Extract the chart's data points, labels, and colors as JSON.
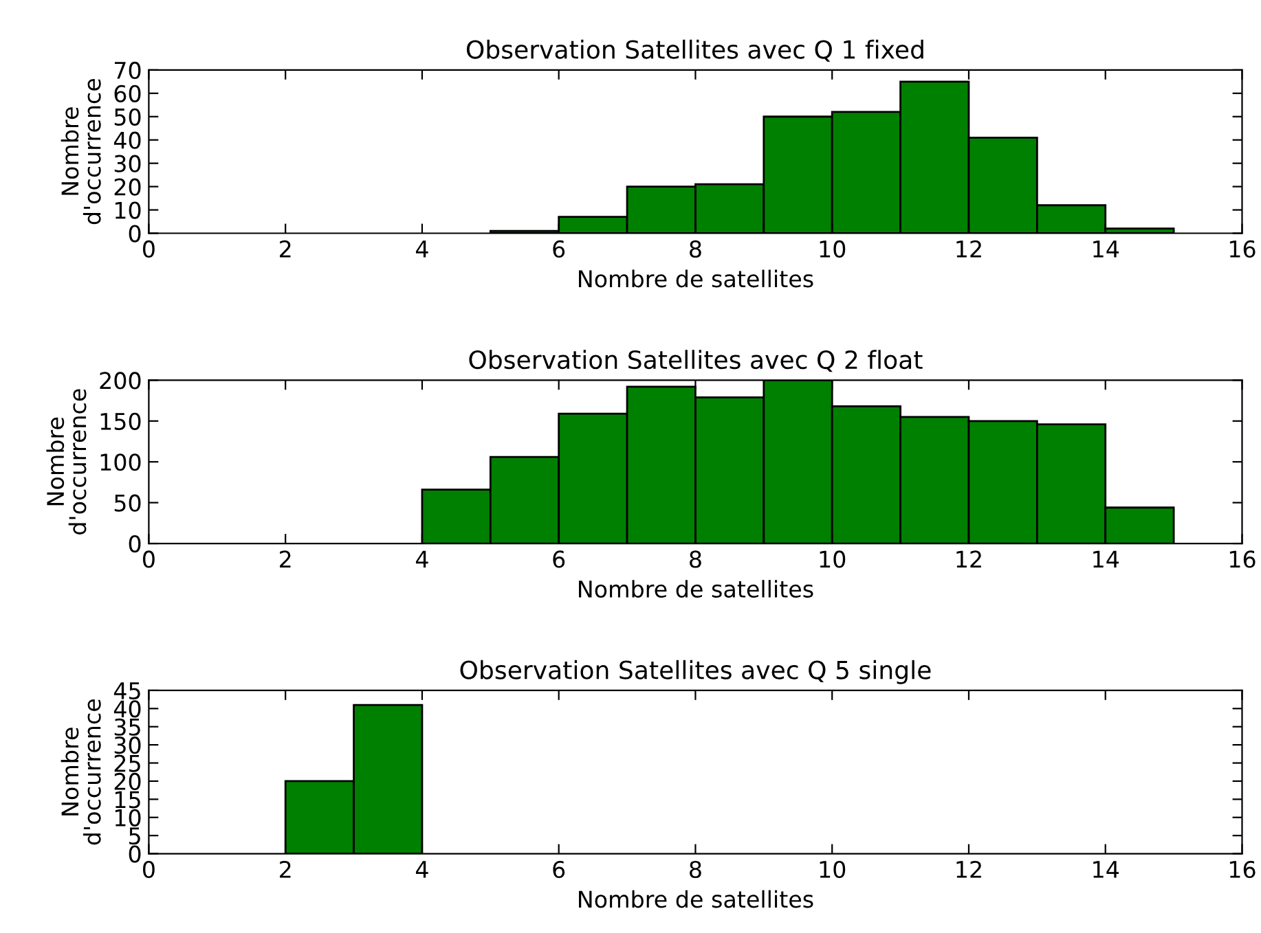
{
  "chart_data": [
    {
      "type": "histogram",
      "title": "Observation Satellites avec Q 1 fixed",
      "xlabel": "Nombre de satellites",
      "ylabel": "Nombre\nd'occurrence",
      "color": "#008000",
      "bins": [
        0,
        1,
        2,
        3,
        4,
        5,
        6,
        7,
        8,
        9,
        10,
        11,
        12,
        13,
        14,
        15
      ],
      "values": [
        0,
        0,
        0,
        0,
        0,
        1,
        7,
        20,
        21,
        50,
        52,
        65,
        41,
        12,
        2
      ],
      "xlim": [
        0,
        16
      ],
      "xticks": [
        0,
        2,
        4,
        6,
        8,
        10,
        12,
        14,
        16
      ],
      "ylim": [
        0,
        70
      ],
      "yticks": [
        0,
        10,
        20,
        30,
        40,
        50,
        60,
        70
      ],
      "grid": false,
      "legend": false
    },
    {
      "type": "histogram",
      "title": "Observation Satellites avec Q 2 float",
      "xlabel": "Nombre de satellites",
      "ylabel": "Nombre\nd'occurrence",
      "color": "#008000",
      "bins": [
        0,
        1,
        2,
        3,
        4,
        5,
        6,
        7,
        8,
        9,
        10,
        11,
        12,
        13,
        14,
        15
      ],
      "values": [
        0,
        0,
        0,
        0,
        66,
        106,
        159,
        192,
        179,
        200,
        168,
        155,
        150,
        146,
        44
      ],
      "xlim": [
        0,
        16
      ],
      "xticks": [
        0,
        2,
        4,
        6,
        8,
        10,
        12,
        14,
        16
      ],
      "ylim": [
        0,
        200
      ],
      "yticks": [
        0,
        50,
        100,
        150,
        200
      ],
      "grid": false,
      "legend": false
    },
    {
      "type": "histogram",
      "title": "Observation Satellites avec Q 5 single",
      "xlabel": "Nombre de satellites",
      "ylabel": "Nombre\nd'occurrence",
      "color": "#008000",
      "bins": [
        0,
        1,
        2,
        3,
        4,
        5,
        6,
        7,
        8,
        9,
        10,
        11,
        12,
        13,
        14,
        15
      ],
      "values": [
        0,
        0,
        20,
        41,
        0,
        0,
        0,
        0,
        0,
        0,
        0,
        0,
        0,
        0,
        0
      ],
      "xlim": [
        0,
        16
      ],
      "xticks": [
        0,
        2,
        4,
        6,
        8,
        10,
        12,
        14,
        16
      ],
      "ylim": [
        0,
        45
      ],
      "yticks": [
        0,
        5,
        10,
        15,
        20,
        25,
        30,
        35,
        40,
        45
      ],
      "grid": false,
      "legend": false
    }
  ]
}
